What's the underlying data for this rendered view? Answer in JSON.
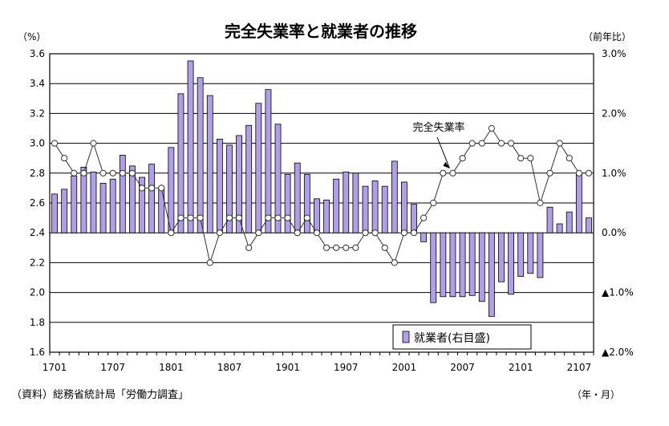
{
  "chart_data": {
    "type": "bar",
    "title": "完全失業率と就業者の推移",
    "left_unit": "（%）",
    "right_unit": "（前年比）",
    "x_unit": "（年・月）",
    "source": "（資料）総務省統計局「労働力調査」",
    "grid": true,
    "legend_position": "bottom-right",
    "y_left": {
      "min": 1.6,
      "max": 3.6,
      "ticks": [
        "1.6",
        "1.8",
        "2.0",
        "2.2",
        "2.4",
        "2.6",
        "2.8",
        "3.0",
        "3.2",
        "3.4",
        "3.6"
      ]
    },
    "y_right": {
      "min": -2.0,
      "max": 3.0,
      "ticks": [
        {
          "value": 3.0,
          "label": "3.0%"
        },
        {
          "value": 2.0,
          "label": "2.0%"
        },
        {
          "value": 1.0,
          "label": "1.0%"
        },
        {
          "value": 0.0,
          "label": "0.0%"
        },
        {
          "value": -1.0,
          "label": "▲1.0%"
        },
        {
          "value": -2.0,
          "label": "▲2.0%"
        }
      ]
    },
    "x_ticks": [
      {
        "index": 0,
        "label": "1701"
      },
      {
        "index": 6,
        "label": "1707"
      },
      {
        "index": 12,
        "label": "1801"
      },
      {
        "index": 18,
        "label": "1807"
      },
      {
        "index": 24,
        "label": "1901"
      },
      {
        "index": 30,
        "label": "1907"
      },
      {
        "index": 36,
        "label": "2001"
      },
      {
        "index": 42,
        "label": "2007"
      },
      {
        "index": 48,
        "label": "2101"
      },
      {
        "index": 54,
        "label": "2107"
      }
    ],
    "series": [
      {
        "name": "就業者(右目盛)",
        "type": "bar",
        "axis": "right",
        "color": "#b19fe6",
        "values": [
          0.65,
          0.73,
          0.95,
          1.1,
          1.02,
          0.83,
          0.9,
          1.3,
          1.12,
          0.93,
          1.15,
          0.75,
          1.43,
          2.33,
          2.88,
          2.6,
          2.3,
          1.57,
          1.47,
          1.63,
          1.8,
          2.17,
          2.4,
          1.82,
          0.98,
          1.17,
          0.98,
          0.57,
          0.55,
          0.9,
          1.02,
          1.0,
          0.78,
          0.87,
          0.78,
          1.2,
          0.85,
          0.48,
          -0.15,
          -1.17,
          -1.07,
          -1.07,
          -1.07,
          -1.05,
          -1.15,
          -1.4,
          -0.82,
          -1.03,
          -0.73,
          -0.68,
          -0.75,
          0.43,
          0.15,
          0.35,
          0.98,
          0.25
        ]
      },
      {
        "name": "完全失業率",
        "type": "line",
        "axis": "left",
        "color": "#333333",
        "marker": "circle-open",
        "annotation": "完全失業率",
        "values": [
          3.0,
          2.9,
          2.8,
          2.8,
          3.0,
          2.8,
          2.8,
          2.8,
          2.8,
          2.7,
          2.7,
          2.7,
          2.4,
          2.5,
          2.5,
          2.5,
          2.2,
          2.4,
          2.5,
          2.5,
          2.3,
          2.4,
          2.5,
          2.5,
          2.5,
          2.4,
          2.5,
          2.4,
          2.3,
          2.3,
          2.3,
          2.3,
          2.4,
          2.4,
          2.3,
          2.2,
          2.4,
          2.4,
          2.5,
          2.6,
          2.8,
          2.8,
          2.9,
          3.0,
          3.0,
          3.1,
          3.0,
          3.0,
          2.9,
          2.9,
          2.6,
          2.8,
          3.0,
          2.9,
          2.8,
          2.8
        ]
      }
    ]
  }
}
